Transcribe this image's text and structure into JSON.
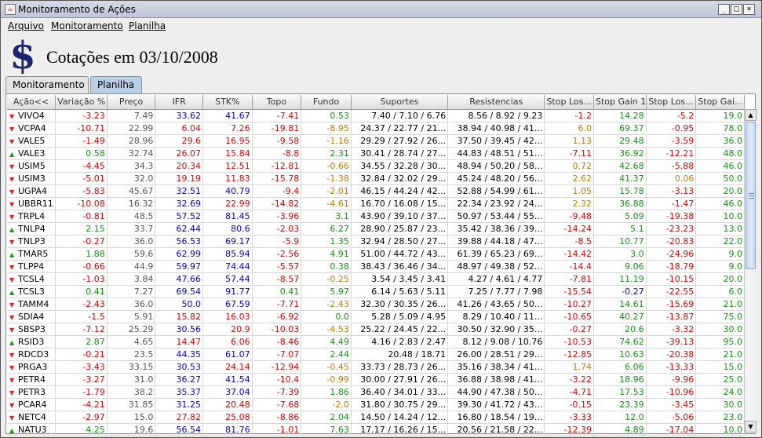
{
  "window": {
    "title": "Monitoramento de Ações",
    "controls": [
      "_",
      "□",
      "×"
    ]
  },
  "menu": [
    {
      "label": "Arquivo"
    },
    {
      "label": "Monitoramento"
    },
    {
      "label": "Planilha"
    }
  ],
  "header": {
    "icon": "dollar-icon",
    "title": "Cotações em 03/10/2008"
  },
  "tabs": [
    {
      "label": "Monitoramento",
      "active": false
    },
    {
      "label": "Planilha",
      "active": true
    }
  ],
  "table": {
    "columns": [
      "Ação<<",
      "Variação %",
      "Preço",
      "IFR",
      "STK%",
      "Topo",
      "Fundo",
      "Suportes",
      "Resistencias",
      "Stop Los...",
      "Stop Gain 1",
      "Stop Los...",
      "Stop Gai..."
    ],
    "rows": [
      {
        "dir": "down",
        "sym": "VIVO4",
        "var": "-3.23",
        "preco": "7.49",
        "ifr": "33.62",
        "stk": "41.67",
        "topo": "-7.41",
        "fundo": "0.53",
        "sup": "7.40 /  7.10 /  6.76",
        "res": "8.56 /  8.92 /  9.23",
        "sl1": "-1.2",
        "sg1": "14.28",
        "sl2": "-5.2",
        "sg2": "19.0"
      },
      {
        "dir": "down",
        "sym": "VCPA4",
        "var": "-10.71",
        "preco": "22.99",
        "ifr": "6.04",
        "stk": "7.26",
        "topo": "-19.81",
        "fundo": "-8.95",
        "sup": "24.37 / 22.77 / 21...",
        "res": "38.94 / 40.98 / 41...",
        "sl1": "6.0",
        "sg1": "69.37",
        "sl2": "-0.95",
        "sg2": "78.0"
      },
      {
        "dir": "down",
        "sym": "VALE5",
        "var": "-1.49",
        "preco": "28.96",
        "ifr": "29.6",
        "stk": "16.95",
        "topo": "-9.58",
        "fundo": "-1.16",
        "sup": "29.29 / 27.92 / 26...",
        "res": "37.50 / 39.45 / 42...",
        "sl1": "1.13",
        "sg1": "29.48",
        "sl2": "-3.59",
        "sg2": "36.0"
      },
      {
        "dir": "up",
        "sym": "VALE3",
        "var": "0.58",
        "preco": "32.74",
        "ifr": "26.07",
        "stk": "15.84",
        "topo": "-8.8",
        "fundo": "2.31",
        "sup": "30.41 / 28.74 / 27...",
        "res": "44.83 / 48.51 / 51...",
        "sl1": "-7.11",
        "sg1": "36.92",
        "sl2": "-12.21",
        "sg2": "48.0"
      },
      {
        "dir": "down",
        "sym": "USIM5",
        "var": "-4.45",
        "preco": "34.3",
        "ifr": "20.34",
        "stk": "12.51",
        "topo": "-12.81",
        "fundo": "-0.66",
        "sup": "34.55 / 32.28 / 30...",
        "res": "48.94 / 50.20 / 58...",
        "sl1": "0.72",
        "sg1": "42.68",
        "sl2": "-5.88",
        "sg2": "46.0"
      },
      {
        "dir": "down",
        "sym": "USIM3",
        "var": "-5.01",
        "preco": "32.0",
        "ifr": "19.19",
        "stk": "11.83",
        "topo": "-15.78",
        "fundo": "-1.38",
        "sup": "32.84 / 32.02 / 29...",
        "res": "45.24 / 48.20 / 56...",
        "sl1": "2.62",
        "sg1": "41.37",
        "sl2": "0.06",
        "sg2": "50.0"
      },
      {
        "dir": "down",
        "sym": "UGPA4",
        "var": "-5.83",
        "preco": "45.67",
        "ifr": "32.51",
        "stk": "40.79",
        "topo": "-9.4",
        "fundo": "-2.01",
        "sup": "46.15 / 44.24 / 42...",
        "res": "52.88 / 54.99 / 61...",
        "sl1": "1.05",
        "sg1": "15.78",
        "sl2": "-3.13",
        "sg2": "20.0"
      },
      {
        "dir": "down",
        "sym": "UBBR11",
        "var": "-10.08",
        "preco": "16.32",
        "ifr": "32.69",
        "stk": "22.99",
        "topo": "-14.82",
        "fundo": "-4.61",
        "sup": "16.70 / 16.08 / 15...",
        "res": "22.34 / 23.92 / 24...",
        "sl1": "2.32",
        "sg1": "36.88",
        "sl2": "-1.47",
        "sg2": "46.0"
      },
      {
        "dir": "down",
        "sym": "TRPL4",
        "var": "-0.81",
        "preco": "48.5",
        "ifr": "57.52",
        "stk": "81.45",
        "topo": "-3.96",
        "fundo": "3.1",
        "sup": "43.90 / 39.10 / 37...",
        "res": "50.97 / 53.44 / 55...",
        "sl1": "-9.48",
        "sg1": "5.09",
        "sl2": "-19.38",
        "sg2": "10.0"
      },
      {
        "dir": "up",
        "sym": "TNLP4",
        "var": "2.15",
        "preco": "33.7",
        "ifr": "62.44",
        "stk": "80.6",
        "topo": "-2.03",
        "fundo": "6.27",
        "sup": "28.90 / 25.87 / 23...",
        "res": "35.42 / 38.36 / 39...",
        "sl1": "-14.24",
        "sg1": "5.1",
        "sl2": "-23.23",
        "sg2": "13.0"
      },
      {
        "dir": "down",
        "sym": "TNLP3",
        "var": "-0.27",
        "preco": "36.0",
        "ifr": "56.53",
        "stk": "69.17",
        "topo": "-5.9",
        "fundo": "1.35",
        "sup": "32.94 / 28.50 / 27...",
        "res": "39.88 / 44.18 / 47...",
        "sl1": "-8.5",
        "sg1": "10.77",
        "sl2": "-20.83",
        "sg2": "22.0"
      },
      {
        "dir": "up",
        "sym": "TMAR5",
        "var": "1.88",
        "preco": "59.6",
        "ifr": "62.99",
        "stk": "85.94",
        "topo": "-2.56",
        "fundo": "4.91",
        "sup": "51.00 / 44.72 / 43...",
        "res": "61.39 / 65.23 / 69...",
        "sl1": "-14.42",
        "sg1": "3.0",
        "sl2": "-24.96",
        "sg2": "9.0"
      },
      {
        "dir": "down",
        "sym": "TLPP4",
        "var": "-0.66",
        "preco": "44.9",
        "ifr": "59.97",
        "stk": "74.44",
        "topo": "-5.57",
        "fundo": "0.38",
        "sup": "38.43 / 36.46 / 34...",
        "res": "48.97 / 49.38 / 52...",
        "sl1": "-14.4",
        "sg1": "9.06",
        "sl2": "-18.79",
        "sg2": "9.0"
      },
      {
        "dir": "down",
        "sym": "TCSL4",
        "var": "-1.03",
        "preco": "3.84",
        "ifr": "47.66",
        "stk": "57.44",
        "topo": "-8.57",
        "fundo": "-0.25",
        "sup": "3.54 /  3.45 /  3.41",
        "res": "4.27 /  4.61 /  4.77",
        "sl1": "-7.81",
        "sg1": "11.19",
        "sl2": "-10.15",
        "sg2": "20.0"
      },
      {
        "dir": "up",
        "sym": "TCSL3",
        "var": "0.41",
        "preco": "7.27",
        "ifr": "69.54",
        "stk": "91.77",
        "topo": "0.41",
        "fundo": "5.97",
        "sup": "6.14 /  5.63 /  5.11",
        "res": "7.25 /  7.77 /  7.98",
        "sl1": "-15.54",
        "sg1": "-0.27",
        "sl2": "-22.55",
        "sg2": "6.0"
      },
      {
        "dir": "down",
        "sym": "TAMM4",
        "var": "-2.43",
        "preco": "36.0",
        "ifr": "50.0",
        "stk": "67.59",
        "topo": "-7.71",
        "fundo": "-2.43",
        "sup": "32.30 / 30.35 / 26...",
        "res": "41.26 / 43.65 / 50...",
        "sl1": "-10.27",
        "sg1": "14.61",
        "sl2": "-15.69",
        "sg2": "21.0"
      },
      {
        "dir": "down",
        "sym": "SDIA4",
        "var": "-1.5",
        "preco": "5.91",
        "ifr": "15.82",
        "stk": "16.03",
        "topo": "-6.92",
        "fundo": "0.0",
        "sup": "5.28 /  5.09 /  4.95",
        "res": "8.29 / 10.40 / 11...",
        "sl1": "-10.65",
        "sg1": "40.27",
        "sl2": "-13.87",
        "sg2": "75.0"
      },
      {
        "dir": "down",
        "sym": "SBSP3",
        "var": "-7.12",
        "preco": "25.29",
        "ifr": "30.56",
        "stk": "20.9",
        "topo": "-10.03",
        "fundo": "-4.53",
        "sup": "25.22 / 24.45 / 22...",
        "res": "30.50 / 32.90 / 35...",
        "sl1": "-0.27",
        "sg1": "20.6",
        "sl2": "-3.32",
        "sg2": "30.0"
      },
      {
        "dir": "up",
        "sym": "RSID3",
        "var": "2.87",
        "preco": "4.65",
        "ifr": "14.47",
        "stk": "6.06",
        "topo": "-8.46",
        "fundo": "4.49",
        "sup": "4.16 /  2.83 /  2.47",
        "res": "8.12 /  9.08 / 10.76",
        "sl1": "-10.53",
        "sg1": "74.62",
        "sl2": "-39.13",
        "sg2": "95.0"
      },
      {
        "dir": "down",
        "sym": "RDCD3",
        "var": "-0.21",
        "preco": "23.5",
        "ifr": "44.35",
        "stk": "61.07",
        "topo": "-7.07",
        "fundo": "2.44",
        "sup": "20.48 / 18.71",
        "res": "26.00 / 28.51 / 29...",
        "sl1": "-12.85",
        "sg1": "10.63",
        "sl2": "-20.38",
        "sg2": "21.0"
      },
      {
        "dir": "down",
        "sym": "PRGA3",
        "var": "-3.43",
        "preco": "33.15",
        "ifr": "30.53",
        "stk": "24.14",
        "topo": "-12.94",
        "fundo": "-0.45",
        "sup": "33.73 / 28.73 / 26...",
        "res": "35.16 / 38.34 / 41...",
        "sl1": "1.74",
        "sg1": "6.06",
        "sl2": "-13.33",
        "sg2": "15.0"
      },
      {
        "dir": "down",
        "sym": "PETR4",
        "var": "-3.27",
        "preco": "31.0",
        "ifr": "36.27",
        "stk": "41.54",
        "topo": "-10.4",
        "fundo": "-0.99",
        "sup": "30.00 / 27.91 / 26...",
        "res": "36.88 / 38.98 / 41...",
        "sl1": "-3.22",
        "sg1": "18.96",
        "sl2": "-9.96",
        "sg2": "25.0"
      },
      {
        "dir": "down",
        "sym": "PETR3",
        "var": "-1.79",
        "preco": "38.2",
        "ifr": "35.37",
        "stk": "37.04",
        "topo": "-7.39",
        "fundo": "1.86",
        "sup": "36.40 / 34.01 / 33...",
        "res": "44.90 / 47.38 / 50...",
        "sl1": "-4.71",
        "sg1": "17.53",
        "sl2": "-10.96",
        "sg2": "24.0"
      },
      {
        "dir": "down",
        "sym": "PCAR4",
        "var": "-4.21",
        "preco": "31.85",
        "ifr": "31.25",
        "stk": "20.48",
        "topo": "-7.68",
        "fundo": "-2.0",
        "sup": "31.80 / 30.75 / 29...",
        "res": "39.30 / 41.72 / 43...",
        "sl1": "-0.15",
        "sg1": "23.39",
        "sl2": "-3.45",
        "sg2": "30.0"
      },
      {
        "dir": "down",
        "sym": "NETC4",
        "var": "-2.97",
        "preco": "15.0",
        "ifr": "27.82",
        "stk": "25.08",
        "topo": "-8.86",
        "fundo": "2.04",
        "sup": "14.50 / 14.24 / 12...",
        "res": "16.80 / 18.54 / 19...",
        "sl1": "-3.33",
        "sg1": "12.0",
        "sl2": "-5.06",
        "sg2": "23.0"
      },
      {
        "dir": "up",
        "sym": "NATU3",
        "var": "4.25",
        "preco": "19.6",
        "ifr": "56.54",
        "stk": "81.76",
        "topo": "-1.01",
        "fundo": "7.63",
        "sup": "17.17 / 16.26 / 15...",
        "res": "20.56 / 21.58 / 22...",
        "sl1": "-12.39",
        "sg1": "4.89",
        "sl2": "-17.04",
        "sg2": "10.0"
      }
    ]
  },
  "colors": {
    "negative": "#e00000",
    "positive": "#169016",
    "blue": "#0000d0",
    "orange": "#c87800",
    "tab_active": "#b8cfe5"
  }
}
